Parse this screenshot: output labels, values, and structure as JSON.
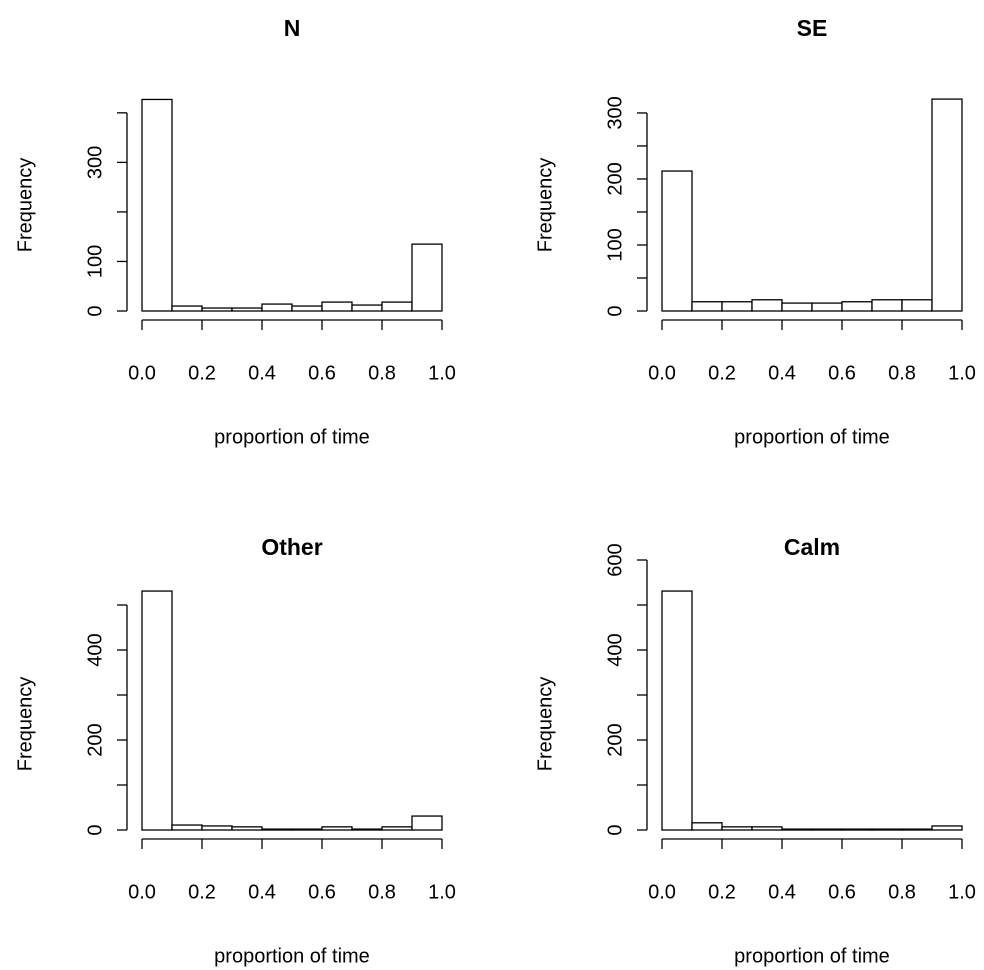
{
  "chart_data": [
    {
      "type": "histogram",
      "title": "N",
      "xlabel": "proportion of time",
      "ylabel": "Frequency",
      "bins": [
        0,
        0.1,
        0.2,
        0.3,
        0.4,
        0.5,
        0.6,
        0.7,
        0.8,
        0.9,
        1.0
      ],
      "values": [
        427,
        10,
        6,
        6,
        14,
        10,
        18,
        12,
        18,
        135
      ],
      "xlim": [
        0,
        1
      ],
      "xticks": [
        {
          "value": 0,
          "label": "0.0"
        },
        0.2,
        0.4,
        0.6,
        0.8,
        {
          "value": 1,
          "label": "1.0"
        }
      ],
      "ylim": [
        0,
        545
      ],
      "yticks": [
        0,
        100,
        {
          "value": 200,
          "label": null
        },
        300,
        {
          "value": 400,
          "label": null
        }
      ]
    },
    {
      "type": "histogram",
      "title": "SE",
      "xlabel": "proportion of time",
      "ylabel": "Frequency",
      "bins": [
        0,
        0.1,
        0.2,
        0.3,
        0.4,
        0.5,
        0.6,
        0.7,
        0.8,
        0.9,
        1.0
      ],
      "values": [
        212,
        14,
        14,
        17,
        12,
        12,
        14,
        17,
        17,
        321
      ],
      "xlim": [
        0,
        1
      ],
      "xticks": [
        {
          "value": 0,
          "label": "0.0"
        },
        0.2,
        0.4,
        0.6,
        0.8,
        {
          "value": 1,
          "label": "1.0"
        }
      ],
      "ylim": [
        0,
        409
      ],
      "yticks": [
        0,
        {
          "value": 50,
          "label": null
        },
        100,
        {
          "value": 150,
          "label": null
        },
        200,
        {
          "value": 250,
          "label": null
        },
        300
      ]
    },
    {
      "type": "histogram",
      "title": "Other",
      "xlabel": "proportion of time",
      "ylabel": "Frequency",
      "bins": [
        0,
        0.1,
        0.2,
        0.3,
        0.4,
        0.5,
        0.6,
        0.7,
        0.8,
        0.9,
        1.0
      ],
      "values": [
        531,
        11,
        9,
        7,
        2,
        2,
        7,
        2,
        7,
        31
      ],
      "xlim": [
        0,
        1
      ],
      "xticks": [
        {
          "value": 0,
          "label": "0.0"
        },
        0.2,
        0.4,
        0.6,
        0.8,
        {
          "value": 1,
          "label": "1.0"
        }
      ],
      "ylim": [
        0,
        600
      ],
      "yticks": [
        0,
        {
          "value": 100,
          "label": null
        },
        200,
        {
          "value": 300,
          "label": null
        },
        400,
        {
          "value": 500,
          "label": null
        }
      ]
    },
    {
      "type": "histogram",
      "title": "Calm",
      "xlabel": "proportion of time",
      "ylabel": "Frequency",
      "bins": [
        0,
        0.1,
        0.2,
        0.3,
        0.4,
        0.5,
        0.6,
        0.7,
        0.8,
        0.9,
        1.0
      ],
      "values": [
        531,
        16,
        7,
        7,
        2,
        2,
        2,
        2,
        2,
        9
      ],
      "xlim": [
        0,
        1
      ],
      "xticks": [
        {
          "value": 0,
          "label": "0.0"
        },
        0.2,
        0.4,
        0.6,
        0.8,
        {
          "value": 1,
          "label": "1.0"
        }
      ],
      "ylim": [
        0,
        600
      ],
      "yticks": [
        0,
        {
          "value": 100,
          "label": null
        },
        200,
        {
          "value": 300,
          "label": null
        },
        400,
        {
          "value": 500,
          "label": null
        },
        600
      ]
    }
  ]
}
